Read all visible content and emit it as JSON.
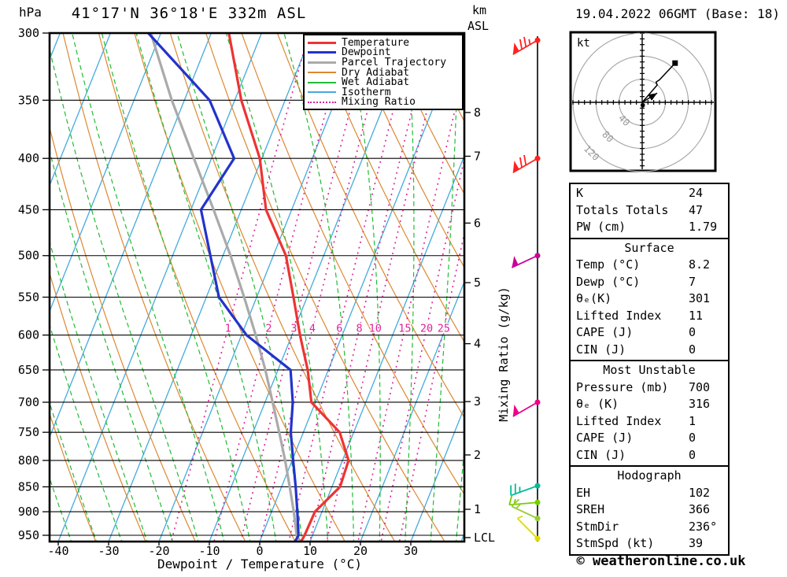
{
  "header": {
    "station_title": "41°17'N 36°18'E 332m ASL",
    "datetime_title": "19.04.2022 06GMT (Base: 18)",
    "footer_credit": "© weatheronline.co.uk"
  },
  "chart_data": {
    "type": "skewt-logp",
    "pressure_axis": {
      "label": "hPa",
      "ticks": [
        300,
        350,
        400,
        450,
        500,
        550,
        600,
        650,
        700,
        750,
        800,
        850,
        900,
        950
      ],
      "range": [
        300,
        965
      ]
    },
    "temp_axis": {
      "label": "Dewpoint / Temperature (°C)",
      "ticks": [
        -40,
        -30,
        -20,
        -10,
        0,
        10,
        20,
        30
      ],
      "range_at_surface": [
        -42,
        49
      ]
    },
    "km_axis": {
      "header_line1": "km",
      "header_line2": "ASL",
      "ticks": [
        {
          "km": 8,
          "p": 360
        },
        {
          "km": 7,
          "p": 398
        },
        {
          "km": 6,
          "p": 464
        },
        {
          "km": 5,
          "p": 532
        },
        {
          "km": 4,
          "p": 612
        },
        {
          "km": 3,
          "p": 699
        },
        {
          "km": 2,
          "p": 790
        },
        {
          "km": 1,
          "p": 895
        }
      ],
      "lcl": {
        "label": "LCL",
        "p": 955
      }
    },
    "mixing_axis_label": "Mixing Ratio (g/kg)",
    "mixing_ratio_lines_gkg": [
      1,
      2,
      3,
      4,
      6,
      8,
      10,
      15,
      20,
      25
    ],
    "mixing_label_pressure": 591,
    "isotherm_step_c": 10,
    "dry_adiabat_step_c": 10,
    "wet_adiabat_step_c": 5,
    "series": {
      "temperature": [
        [
          300,
          -46.5
        ],
        [
          350,
          -38.7
        ],
        [
          400,
          -30.4
        ],
        [
          450,
          -25.1
        ],
        [
          500,
          -17.5
        ],
        [
          550,
          -12.7
        ],
        [
          600,
          -8.4
        ],
        [
          650,
          -4.1
        ],
        [
          700,
          -0.8
        ],
        [
          750,
          7.2
        ],
        [
          800,
          11.2
        ],
        [
          850,
          11.6
        ],
        [
          900,
          8.6
        ],
        [
          950,
          8.4
        ],
        [
          965,
          8.2
        ]
      ],
      "dewpoint": [
        [
          300,
          -62.5
        ],
        [
          350,
          -45.0
        ],
        [
          400,
          -35.5
        ],
        [
          450,
          -38.0
        ],
        [
          500,
          -32.5
        ],
        [
          550,
          -27.5
        ],
        [
          600,
          -19.0
        ],
        [
          650,
          -7.5
        ],
        [
          700,
          -4.5
        ],
        [
          750,
          -2.5
        ],
        [
          800,
          0.2
        ],
        [
          850,
          2.8
        ],
        [
          900,
          5.1
        ],
        [
          950,
          7.2
        ],
        [
          965,
          7.0
        ]
      ],
      "parcel": [
        [
          300,
          -62.0
        ],
        [
          350,
          -52.5
        ],
        [
          400,
          -43.5
        ],
        [
          450,
          -35.5
        ],
        [
          500,
          -28.5
        ],
        [
          550,
          -22.5
        ],
        [
          600,
          -17.2
        ],
        [
          650,
          -12.5
        ],
        [
          700,
          -8.5
        ],
        [
          750,
          -4.8
        ],
        [
          800,
          -1.4
        ],
        [
          850,
          1.6
        ],
        [
          900,
          4.4
        ],
        [
          951,
          6.9
        ],
        [
          965,
          8.2
        ]
      ]
    },
    "winds": [
      {
        "p": 305,
        "kt": 75,
        "from_deg": 240,
        "color": "#ff2222"
      },
      {
        "p": 400,
        "kt": 70,
        "from_deg": 240,
        "color": "#ff2222"
      },
      {
        "p": 500,
        "kt": 50,
        "from_deg": 245,
        "color": "#cc0099"
      },
      {
        "p": 700,
        "kt": 50,
        "from_deg": 240,
        "color": "#ee0088"
      },
      {
        "p": 848,
        "kt": 25,
        "from_deg": 250,
        "color": "#00bb99"
      },
      {
        "p": 881,
        "kt": 15,
        "from_deg": 265,
        "color": "#77cc00"
      },
      {
        "p": 914,
        "kt": 15,
        "from_deg": 295,
        "color": "#99cc33"
      },
      {
        "p": 957,
        "kt": 5,
        "from_deg": 315,
        "color": "#dddd00"
      }
    ],
    "hodograph": {
      "unit_label": "kt",
      "rings_kt": [
        40,
        80,
        120
      ],
      "tick_step_kt": 10,
      "trace_kt": [
        [
          0,
          0
        ],
        [
          26,
          30
        ],
        [
          24,
          35
        ],
        [
          30,
          39
        ],
        [
          57,
          68
        ]
      ],
      "trace_end_dot_kt": [
        57,
        68
      ],
      "surface_dot_kt": [
        1,
        -5
      ],
      "storm_motion_kt": [
        26,
        16
      ]
    },
    "legend": [
      {
        "label": "Temperature",
        "color": "#ee3333",
        "width": 3,
        "style": "solid"
      },
      {
        "label": "Dewpoint",
        "color": "#2233cc",
        "width": 3,
        "style": "solid"
      },
      {
        "label": "Parcel Trajectory",
        "color": "#aaaaaa",
        "width": 3,
        "style": "solid"
      },
      {
        "label": "Dry Adiabat",
        "color": "#dd8833",
        "width": 2,
        "style": "solid"
      },
      {
        "label": "Wet Adiabat",
        "color": "#22bb33",
        "width": 2,
        "style": "solid"
      },
      {
        "label": "Isotherm",
        "color": "#44aadd",
        "width": 2,
        "style": "solid"
      },
      {
        "label": "Mixing Ratio",
        "color": "#dd2299",
        "width": 2,
        "style": "dotted"
      }
    ],
    "colors": {
      "temperature": "#ee3333",
      "dewpoint": "#2233cc",
      "parcel": "#aaaaaa",
      "dry_adiabat": "#dd8833",
      "wet_adiabat": "#22bb33",
      "isotherm": "#44aadd",
      "mixing_ratio": "#dd2299",
      "grid": "#000000",
      "hodograph_rings": "#aaaaaa"
    }
  },
  "tables": [
    {
      "title": "",
      "rows": [
        [
          "K",
          "24"
        ],
        [
          "Totals Totals",
          "47"
        ],
        [
          "PW (cm)",
          "1.79"
        ]
      ]
    },
    {
      "title": "Surface",
      "rows": [
        [
          "Temp (°C)",
          "8.2"
        ],
        [
          "Dewp (°C)",
          "7"
        ],
        [
          "θₑ(K)",
          "301"
        ],
        [
          "Lifted Index",
          "11"
        ],
        [
          "CAPE (J)",
          "0"
        ],
        [
          "CIN (J)",
          "0"
        ]
      ]
    },
    {
      "title": "Most Unstable",
      "rows": [
        [
          "Pressure (mb)",
          "700"
        ],
        [
          "θₑ (K)",
          "316"
        ],
        [
          "Lifted Index",
          "1"
        ],
        [
          "CAPE (J)",
          "0"
        ],
        [
          "CIN (J)",
          "0"
        ]
      ]
    },
    {
      "title": "Hodograph",
      "rows": [
        [
          "EH",
          "102"
        ],
        [
          "SREH",
          "366"
        ],
        [
          "StmDir",
          "236°"
        ],
        [
          "StmSpd (kt)",
          "39"
        ]
      ]
    }
  ]
}
